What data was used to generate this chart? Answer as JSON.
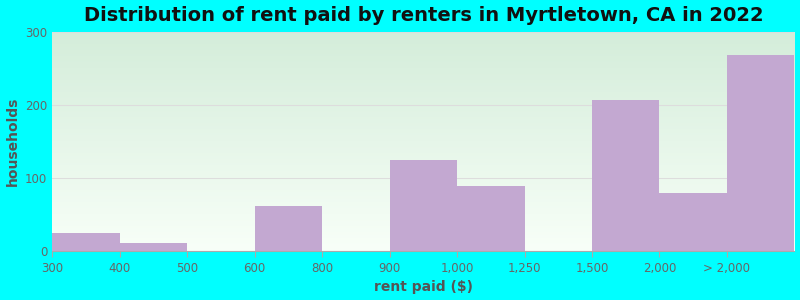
{
  "title": "Distribution of rent paid by renters in Myrtletown, CA in 2022",
  "xlabel": "rent paid ($)",
  "ylabel": "households",
  "tick_labels": [
    "300",
    "400",
    "500",
    "600",
    "800",
    "900",
    "1,000",
    "1,250",
    "1,500",
    "2,000",
    "> 2,000"
  ],
  "bar_values": [
    25,
    12,
    0,
    62,
    0,
    125,
    90,
    0,
    207,
    80,
    268
  ],
  "bar_color": "#C3A8D1",
  "background_color": "#00FFFF",
  "ylim": [
    0,
    300
  ],
  "yticks": [
    0,
    100,
    200,
    300
  ],
  "title_fontsize": 14,
  "axis_label_fontsize": 10,
  "tick_fontsize": 8.5,
  "grid_color": "#dddddd",
  "tick_label_color": "#666666",
  "axis_label_color": "#555555",
  "title_color": "#111111",
  "gradient_top": "#d4edda",
  "gradient_bottom": "#f8fff8"
}
